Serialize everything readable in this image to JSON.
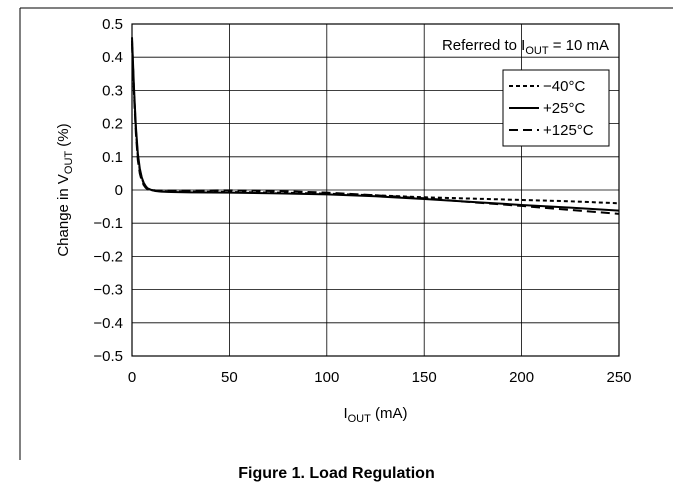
{
  "caption": "Figure 1. Load Regulation",
  "chart_data": {
    "type": "line",
    "xlabel_main": "I",
    "xlabel_sub": "OUT",
    "xlabel_unit": " (mA)",
    "ylabel_pre": "Change in V",
    "ylabel_sub": "OUT",
    "ylabel_post": " (%)",
    "annotation_pre": "Referred to I",
    "annotation_sub": "OUT",
    "annotation_post": " = 10 mA",
    "xlim": [
      0,
      250
    ],
    "ylim": [
      -0.5,
      0.5
    ],
    "xticks": [
      0,
      50,
      100,
      150,
      200,
      250
    ],
    "yticks": [
      0.5,
      0.4,
      0.3,
      0.2,
      0.1,
      0,
      -0.1,
      -0.2,
      -0.3,
      -0.4,
      -0.5
    ],
    "xtick_labels": [
      "0",
      "50",
      "100",
      "150",
      "200",
      "250"
    ],
    "ytick_labels": [
      "0.5",
      "0.4",
      "0.3",
      "0.2",
      "0.1",
      "0",
      "−0.1",
      "−0.2",
      "−0.3",
      "−0.4",
      "−0.5"
    ],
    "grid": true,
    "legend_position": "top-right",
    "series": [
      {
        "name": "−40°C",
        "dash": "dotted-short",
        "x": [
          0,
          1,
          2,
          3,
          4,
          5,
          6,
          7,
          8,
          10,
          12,
          15,
          20,
          30,
          50,
          75,
          100,
          125,
          150,
          175,
          200,
          225,
          250
        ],
        "y": [
          0.45,
          0.3,
          0.18,
          0.1,
          0.06,
          0.035,
          0.02,
          0.01,
          0.004,
          0.0,
          -0.002,
          -0.004,
          -0.005,
          -0.005,
          -0.006,
          -0.008,
          -0.011,
          -0.016,
          -0.022,
          -0.026,
          -0.03,
          -0.034,
          -0.04
        ]
      },
      {
        "name": "+25°C",
        "dash": "solid",
        "x": [
          0,
          1,
          2,
          3,
          4,
          5,
          6,
          7,
          8,
          10,
          12,
          15,
          20,
          30,
          50,
          75,
          100,
          125,
          150,
          175,
          200,
          225,
          250
        ],
        "y": [
          0.46,
          0.31,
          0.19,
          0.11,
          0.065,
          0.038,
          0.022,
          0.012,
          0.005,
          0.0,
          -0.003,
          -0.005,
          -0.006,
          -0.007,
          -0.008,
          -0.01,
          -0.013,
          -0.019,
          -0.027,
          -0.036,
          -0.045,
          -0.053,
          -0.062
        ]
      },
      {
        "name": "+125°C",
        "dash": "long",
        "x": [
          0,
          1,
          2,
          3,
          4,
          5,
          6,
          7,
          8,
          10,
          12,
          15,
          20,
          30,
          50,
          75,
          100,
          125,
          150,
          175,
          200,
          225,
          250
        ],
        "y": [
          0.44,
          0.29,
          0.17,
          0.09,
          0.05,
          0.028,
          0.015,
          0.007,
          0.002,
          0.0,
          -0.001,
          -0.002,
          -0.002,
          -0.002,
          -0.001,
          -0.003,
          -0.008,
          -0.016,
          -0.025,
          -0.037,
          -0.048,
          -0.06,
          -0.072
        ]
      }
    ]
  }
}
